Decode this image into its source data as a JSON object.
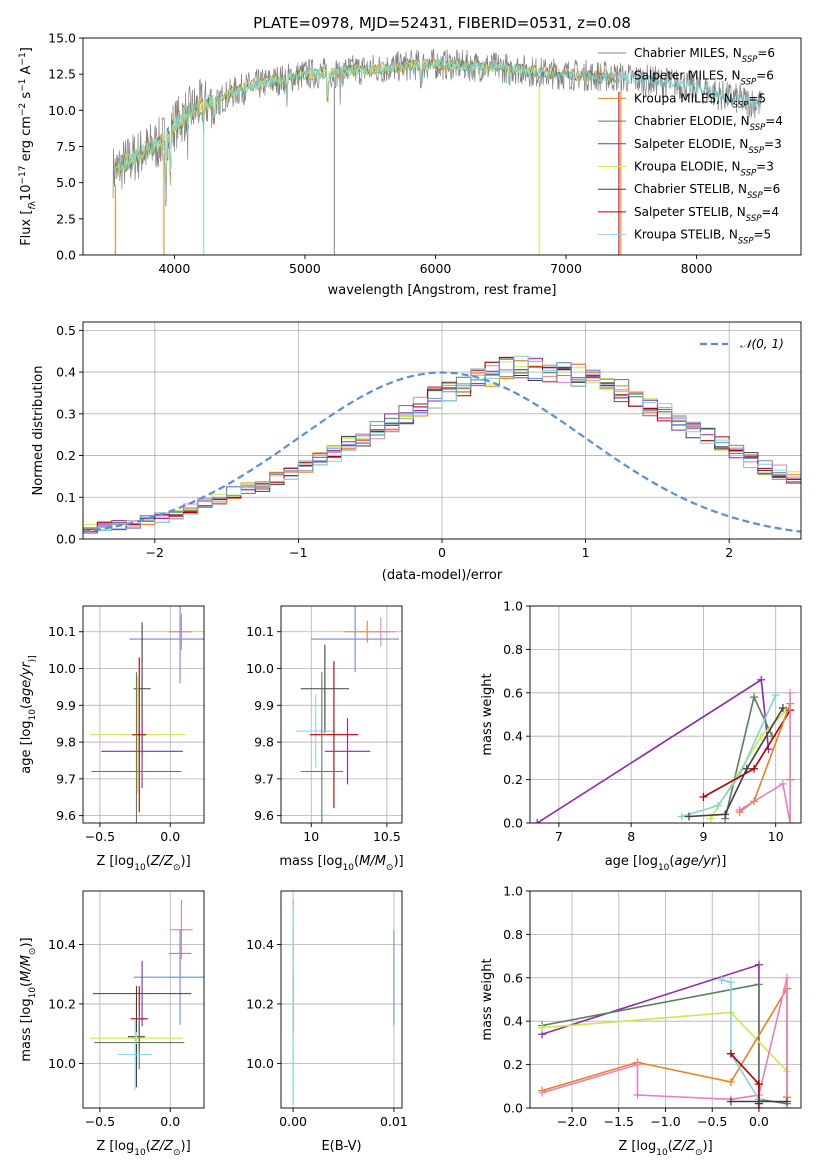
{
  "colors": {
    "chabrier_miles": "#808080",
    "salpeter_miles": "#7fd6d8",
    "kroupa_miles": "#f07f1b",
    "chabrier_elodie": "#5a7f5f",
    "salpeter_elodie": "#8e2aa8",
    "kroupa_elodie": "#cce84f",
    "chabrier_stelib": "#404040",
    "salpeter_stelib": "#b00000",
    "kroupa_stelib": "#8fd3f0",
    "pink": "#e77fc2",
    "blue": "#6a8fd8",
    "gauss": "#5b8fd5"
  },
  "chart_data": [
    {
      "id": "spectrum",
      "type": "line",
      "title": "PLATE=0978, MJD=52431, FIBERID=0531, z=0.08",
      "xlabel": "wavelength [Angstrom, rest frame]",
      "ylabel_parts": [
        "Flux [",
        "f",
        "λ",
        "10",
        "−17",
        " erg cm",
        "−2",
        " s",
        "−1",
        " A",
        "−1",
        "]"
      ],
      "xlim": [
        3300,
        8800
      ],
      "ylim": [
        0,
        15
      ],
      "xticks": [
        "4000",
        "5000",
        "6000",
        "7000",
        "8000"
      ],
      "xtick_values": [
        4000,
        5000,
        6000,
        7000,
        8000
      ],
      "yticks": [
        "0.0",
        "2.5",
        "5.0",
        "7.5",
        "10.0",
        "12.5",
        "15.0"
      ],
      "ytick_values": [
        0,
        2.5,
        5,
        7.5,
        10,
        12.5,
        15
      ],
      "continuum": {
        "x": [
          3540,
          3600,
          3700,
          3800,
          3900,
          4000,
          4100,
          4200,
          4300,
          4400,
          4500,
          4600,
          4700,
          4800,
          4900,
          5000,
          5200,
          5400,
          5600,
          5800,
          6000,
          6200,
          6400,
          6600,
          6800,
          7000,
          7200,
          7400,
          7600,
          7800,
          8000,
          8200,
          8400,
          8500
        ],
        "y": [
          5.8,
          6.2,
          6.8,
          7.3,
          7.8,
          9.0,
          9.8,
          10.3,
          10.6,
          11.0,
          11.4,
          11.7,
          11.9,
          12.1,
          12.3,
          12.5,
          12.6,
          12.8,
          12.9,
          13.1,
          13.2,
          13.1,
          13.0,
          12.9,
          12.6,
          12.5,
          12.4,
          12.3,
          12.1,
          11.9,
          11.6,
          11.0,
          10.6,
          10.4
        ]
      },
      "legend": [
        {
          "name": "Chabrier MILES, N",
          "n": "6",
          "color_key": "chabrier_miles"
        },
        {
          "name": "Salpeter MILES, N",
          "n": "6",
          "color_key": "salpeter_miles"
        },
        {
          "name": "Kroupa MILES, N",
          "n": "5",
          "color_key": "kroupa_miles"
        },
        {
          "name": "Chabrier ELODIE, N",
          "n": "4",
          "color_key": "chabrier_elodie"
        },
        {
          "name": "Salpeter ELODIE, N",
          "n": "3",
          "color_key": "salpeter_elodie"
        },
        {
          "name": "Kroupa ELODIE, N",
          "n": "3",
          "color_key": "kroupa_elodie"
        },
        {
          "name": "Chabrier STELIB, N",
          "n": "6",
          "color_key": "chabrier_stelib"
        },
        {
          "name": "Salpeter STELIB, N",
          "n": "4",
          "color_key": "salpeter_stelib"
        },
        {
          "name": "Kroupa STELIB, N",
          "n": "5",
          "color_key": "kroupa_stelib"
        }
      ],
      "legend_sub": "SSP",
      "legend_position": "right"
    },
    {
      "id": "residuals",
      "type": "histogram",
      "xlabel": "(data-model)/error",
      "ylabel": "Normed distribution",
      "xlim": [
        -2.5,
        2.5
      ],
      "ylim": [
        0,
        0.52
      ],
      "xticks": [
        "−2",
        "−1",
        "0",
        "1",
        "2"
      ],
      "xtick_values": [
        -2,
        -1,
        0,
        1,
        2
      ],
      "yticks": [
        "0.0",
        "0.1",
        "0.2",
        "0.3",
        "0.4",
        "0.5"
      ],
      "ytick_values": [
        0,
        0.1,
        0.2,
        0.3,
        0.4,
        0.5
      ],
      "bin_width": 0.1,
      "bin_start": -2.5,
      "envelope": [
        0.025,
        0.03,
        0.033,
        0.036,
        0.045,
        0.05,
        0.06,
        0.072,
        0.085,
        0.095,
        0.11,
        0.12,
        0.13,
        0.145,
        0.16,
        0.17,
        0.19,
        0.205,
        0.225,
        0.245,
        0.26,
        0.28,
        0.3,
        0.32,
        0.34,
        0.355,
        0.37,
        0.385,
        0.395,
        0.405,
        0.41,
        0.41,
        0.405,
        0.4,
        0.39,
        0.38,
        0.37,
        0.355,
        0.34,
        0.32,
        0.3,
        0.28,
        0.26,
        0.245,
        0.225,
        0.205,
        0.19,
        0.17,
        0.16,
        0.145
      ],
      "gauss_label": "𝒩(0, 1)",
      "legend_position": "top-right"
    },
    {
      "id": "age_vs_Z",
      "type": "errorbar",
      "xlabel_parts": [
        "Z [log",
        "10",
        "(",
        "Z/Z",
        "⊙",
        ")]"
      ],
      "ylabel_parts": [
        "age  [log",
        "10",
        "(",
        "age/yr",
        ")]"
      ],
      "xlim": [
        -0.62,
        0.24
      ],
      "ylim": [
        9.58,
        10.17
      ],
      "xticks": [
        "−0.5",
        "0.0"
      ],
      "xtick_values": [
        -0.5,
        0.0
      ],
      "yticks": [
        "9.6",
        "9.7",
        "9.8",
        "9.9",
        "10.0",
        "10.1"
      ],
      "ytick_values": [
        9.6,
        9.7,
        9.8,
        9.9,
        10.0,
        10.1
      ],
      "points": [
        {
          "x": 0.07,
          "y": 10.1,
          "xerr": 0.08,
          "yerr": 0.04,
          "color_key": "kroupa_miles"
        },
        {
          "x": 0.08,
          "y": 10.1,
          "xerr": 0.07,
          "yerr": 0.05,
          "color_key": "pink"
        },
        {
          "x": 0.07,
          "y": 10.08,
          "xerr": 0.36,
          "yerr": 0.12,
          "color_key": "blue"
        },
        {
          "x": -0.2,
          "y": 9.945,
          "xerr": 0.06,
          "yerr": 0.18,
          "color_key": "chabrier_stelib"
        },
        {
          "x": -0.23,
          "y": 9.82,
          "xerr": 0.34,
          "yerr": 0.16,
          "color_key": "kroupa_elodie"
        },
        {
          "x": -0.22,
          "y": 9.82,
          "xerr": 0.05,
          "yerr": 0.21,
          "color_key": "salpeter_stelib"
        },
        {
          "x": -0.2,
          "y": 9.775,
          "xerr": 0.29,
          "yerr": 0.1,
          "color_key": "salpeter_elodie"
        },
        {
          "x": -0.24,
          "y": 9.72,
          "xerr": 0.32,
          "yerr": 0.27,
          "color_key": "chabrier_elodie"
        }
      ]
    },
    {
      "id": "age_vs_mass",
      "type": "errorbar",
      "xlabel_parts": [
        "mass [log",
        "10",
        "(",
        "M/M",
        "⊙",
        ")]"
      ],
      "xlim": [
        9.8,
        10.6
      ],
      "ylim": [
        9.58,
        10.17
      ],
      "xticks": [
        "10",
        "10.5"
      ],
      "xtick_values": [
        10,
        10.5
      ],
      "yticks": [
        "9.6",
        "9.7",
        "9.8",
        "9.9",
        "10.0",
        "10.1"
      ],
      "ytick_values": [
        9.6,
        9.7,
        9.8,
        9.9,
        10.0,
        10.1
      ],
      "points": [
        {
          "x": 10.37,
          "y": 10.1,
          "xerr": 0.15,
          "yerr": 0.03,
          "color_key": "kroupa_miles"
        },
        {
          "x": 10.46,
          "y": 10.1,
          "xerr": 0.1,
          "yerr": 0.04,
          "color_key": "pink"
        },
        {
          "x": 10.29,
          "y": 10.08,
          "xerr": 0.29,
          "yerr": 0.09,
          "color_key": "blue"
        },
        {
          "x": 10.09,
          "y": 9.945,
          "xerr": 0.16,
          "yerr": 0.12,
          "color_key": "chabrier_stelib"
        },
        {
          "x": 10.03,
          "y": 9.83,
          "xerr": 0.13,
          "yerr": 0.1,
          "color_key": "kroupa_stelib"
        },
        {
          "x": 10.15,
          "y": 9.82,
          "xerr": 0.16,
          "yerr": 0.2,
          "color_key": "salpeter_stelib"
        },
        {
          "x": 10.24,
          "y": 9.775,
          "xerr": 0.15,
          "yerr": 0.09,
          "color_key": "salpeter_elodie"
        },
        {
          "x": 10.07,
          "y": 9.72,
          "xerr": 0.14,
          "yerr": 0.27,
          "color_key": "chabrier_elodie"
        }
      ]
    },
    {
      "id": "weight_vs_age",
      "type": "line",
      "xlabel_parts": [
        "age  [log",
        "10",
        "(",
        "age/yr",
        ")]"
      ],
      "ylabel": "mass weight",
      "xlim": [
        6.6,
        10.35
      ],
      "ylim": [
        0,
        1
      ],
      "xticks": [
        "7",
        "8",
        "9",
        "10"
      ],
      "xtick_values": [
        7,
        8,
        9,
        10
      ],
      "yticks": [
        "0.0",
        "0.2",
        "0.4",
        "0.6",
        "0.8",
        "1.0"
      ],
      "ytick_values": [
        0,
        0.2,
        0.4,
        0.6,
        0.8,
        1.0
      ],
      "series": [
        {
          "color_key": "salpeter_elodie",
          "x": [
            6.7,
            9.8,
            9.9
          ],
          "y": [
            0.0,
            0.66,
            0.34
          ]
        },
        {
          "color_key": "chabrier_elodie",
          "x": [
            9.3,
            9.7,
            9.95
          ],
          "y": [
            0.02,
            0.58,
            0.4
          ]
        },
        {
          "color_key": "kroupa_elodie",
          "x": [
            9.1,
            9.8,
            10.15
          ],
          "y": [
            0.02,
            0.4,
            0.52
          ]
        },
        {
          "color_key": "salpeter_miles",
          "x": [
            8.7,
            9.2,
            9.5,
            10.0
          ],
          "y": [
            0.03,
            0.08,
            0.22,
            0.59
          ]
        },
        {
          "color_key": "chabrier_stelib",
          "x": [
            8.8,
            9.3,
            9.6,
            10.1
          ],
          "y": [
            0.03,
            0.04,
            0.25,
            0.53
          ]
        },
        {
          "color_key": "salpeter_stelib",
          "x": [
            9.0,
            9.7,
            10.2
          ],
          "y": [
            0.12,
            0.25,
            0.52
          ]
        },
        {
          "color_key": "kroupa_miles",
          "x": [
            9.5,
            9.7,
            10.2,
            10.2
          ],
          "y": [
            0.05,
            0.1,
            0.55,
            0.2
          ]
        },
        {
          "color_key": "pink",
          "x": [
            9.5,
            10.1,
            10.2,
            10.2
          ],
          "y": [
            0.06,
            0.18,
            0.0,
            0.6
          ]
        }
      ]
    },
    {
      "id": "mass_vs_Z",
      "type": "errorbar",
      "xlabel_parts": [
        "Z [log",
        "10",
        "(",
        "Z/Z",
        "⊙",
        ")]"
      ],
      "ylabel_parts": [
        "mass [log",
        "10",
        "(",
        "M/M",
        "⊙",
        ")]"
      ],
      "xlim": [
        -0.62,
        0.24
      ],
      "ylim": [
        9.85,
        10.58
      ],
      "xticks": [
        "−0.5",
        "0.0"
      ],
      "xtick_values": [
        -0.5,
        0.0
      ],
      "yticks": [
        "10.0",
        "10.2",
        "10.4"
      ],
      "ytick_values": [
        10.0,
        10.2,
        10.4
      ],
      "points": [
        {
          "x": 0.08,
          "y": 10.45,
          "xerr": 0.08,
          "yerr": 0.1,
          "color_key": "pink"
        },
        {
          "x": 0.07,
          "y": 10.37,
          "xerr": 0.08,
          "yerr": 0.08,
          "color_key": "kroupa_miles"
        },
        {
          "x": 0.07,
          "y": 10.29,
          "xerr": 0.33,
          "yerr": 0.16,
          "color_key": "blue"
        },
        {
          "x": -0.2,
          "y": 10.235,
          "xerr": 0.35,
          "yerr": 0.11,
          "color_key": "salpeter_elodie"
        },
        {
          "x": -0.22,
          "y": 10.15,
          "xerr": 0.06,
          "yerr": 0.11,
          "color_key": "salpeter_stelib"
        },
        {
          "x": -0.24,
          "y": 10.09,
          "xerr": 0.06,
          "yerr": 0.17,
          "color_key": "chabrier_stelib"
        },
        {
          "x": -0.24,
          "y": 10.085,
          "xerr": 0.33,
          "yerr": 0.02,
          "color_key": "kroupa_elodie"
        },
        {
          "x": -0.22,
          "y": 10.07,
          "xerr": 0.32,
          "yerr": 0.09,
          "color_key": "chabrier_elodie"
        },
        {
          "x": -0.25,
          "y": 10.03,
          "xerr": 0.12,
          "yerr": 0.12,
          "color_key": "kroupa_stelib"
        }
      ]
    },
    {
      "id": "mass_vs_ebv",
      "type": "errorbar",
      "xlabel": "E(B-V)",
      "xlim": [
        -0.0012,
        0.0108
      ],
      "ylim": [
        9.85,
        10.58
      ],
      "xticks": [
        "0.00",
        "0.01"
      ],
      "xtick_values": [
        0.0,
        0.01
      ],
      "yticks": [
        "10.0",
        "10.2",
        "10.4"
      ],
      "ytick_values": [
        10.0,
        10.2,
        10.4
      ],
      "points": [
        {
          "x": 0.0,
          "y": 10.45,
          "xerr": 0,
          "yerr": 0.1,
          "color_key": "pink"
        },
        {
          "x": 0.0,
          "y": 10.37,
          "xerr": 0,
          "yerr": 0.08,
          "color_key": "kroupa_miles"
        },
        {
          "x": 0.0,
          "y": 10.2,
          "xerr": 0,
          "yerr": 0.1,
          "color_key": "salpeter_stelib"
        },
        {
          "x": 0.0,
          "y": 9.95,
          "xerr": 0,
          "yerr": 0.08,
          "color_key": "kroupa_stelib"
        },
        {
          "x": 0.0,
          "y": 10.2,
          "xerr": 0,
          "yerr": 0.33,
          "color_key": "salpeter_miles"
        },
        {
          "x": 0.01,
          "y": 10.29,
          "xerr": 0,
          "yerr": 0.16,
          "color_key": "blue"
        }
      ]
    },
    {
      "id": "weight_vs_Z",
      "type": "line",
      "xlabel_parts": [
        "Z [log",
        "10",
        "(",
        "Z/Z",
        "⊙",
        ")]"
      ],
      "ylabel": "mass weight",
      "xlim": [
        -2.45,
        0.45
      ],
      "ylim": [
        0,
        1
      ],
      "xticks": [
        "−2.0",
        "−1.5",
        "−1.0",
        "−0.5",
        "0.0"
      ],
      "xtick_values": [
        -2.0,
        -1.5,
        -1.0,
        -0.5,
        0.0
      ],
      "yticks": [
        "0.0",
        "0.2",
        "0.4",
        "0.6",
        "0.8",
        "1.0"
      ],
      "ytick_values": [
        0,
        0.2,
        0.4,
        0.6,
        0.8,
        1.0
      ],
      "series": [
        {
          "color_key": "salpeter_elodie",
          "x": [
            -2.32,
            0.0,
            0.0
          ],
          "y": [
            0.34,
            0.66,
            0.0
          ]
        },
        {
          "color_key": "chabrier_elodie",
          "x": [
            -2.32,
            0.0,
            0.0,
            0.3
          ],
          "y": [
            0.38,
            0.57,
            0.04,
            0.02
          ]
        },
        {
          "color_key": "kroupa_elodie",
          "x": [
            -2.32,
            -0.3,
            0.3
          ],
          "y": [
            0.37,
            0.44,
            0.17
          ]
        },
        {
          "color_key": "kroupa_miles",
          "x": [
            -2.32,
            -1.3,
            -0.3,
            0.3,
            0.3
          ],
          "y": [
            0.08,
            0.21,
            0.12,
            0.55,
            0.05
          ]
        },
        {
          "color_key": "pink",
          "x": [
            -2.32,
            -1.3,
            -1.3,
            -0.3,
            0.0,
            0.3,
            0.3
          ],
          "y": [
            0.07,
            0.2,
            0.06,
            0.04,
            0.06,
            0.6,
            0.0
          ]
        },
        {
          "color_key": "salpeter_miles",
          "x": [
            -0.4,
            -0.3,
            -0.3,
            0.0
          ],
          "y": [
            0.59,
            0.58,
            0.25,
            0.04
          ]
        },
        {
          "color_key": "salpeter_stelib",
          "x": [
            -0.3,
            0.0,
            0.0
          ],
          "y": [
            0.25,
            0.11,
            0.02
          ]
        },
        {
          "color_key": "chabrier_stelib",
          "x": [
            -0.3,
            0.0,
            0.3
          ],
          "y": [
            0.03,
            0.03,
            0.03
          ]
        }
      ]
    }
  ]
}
